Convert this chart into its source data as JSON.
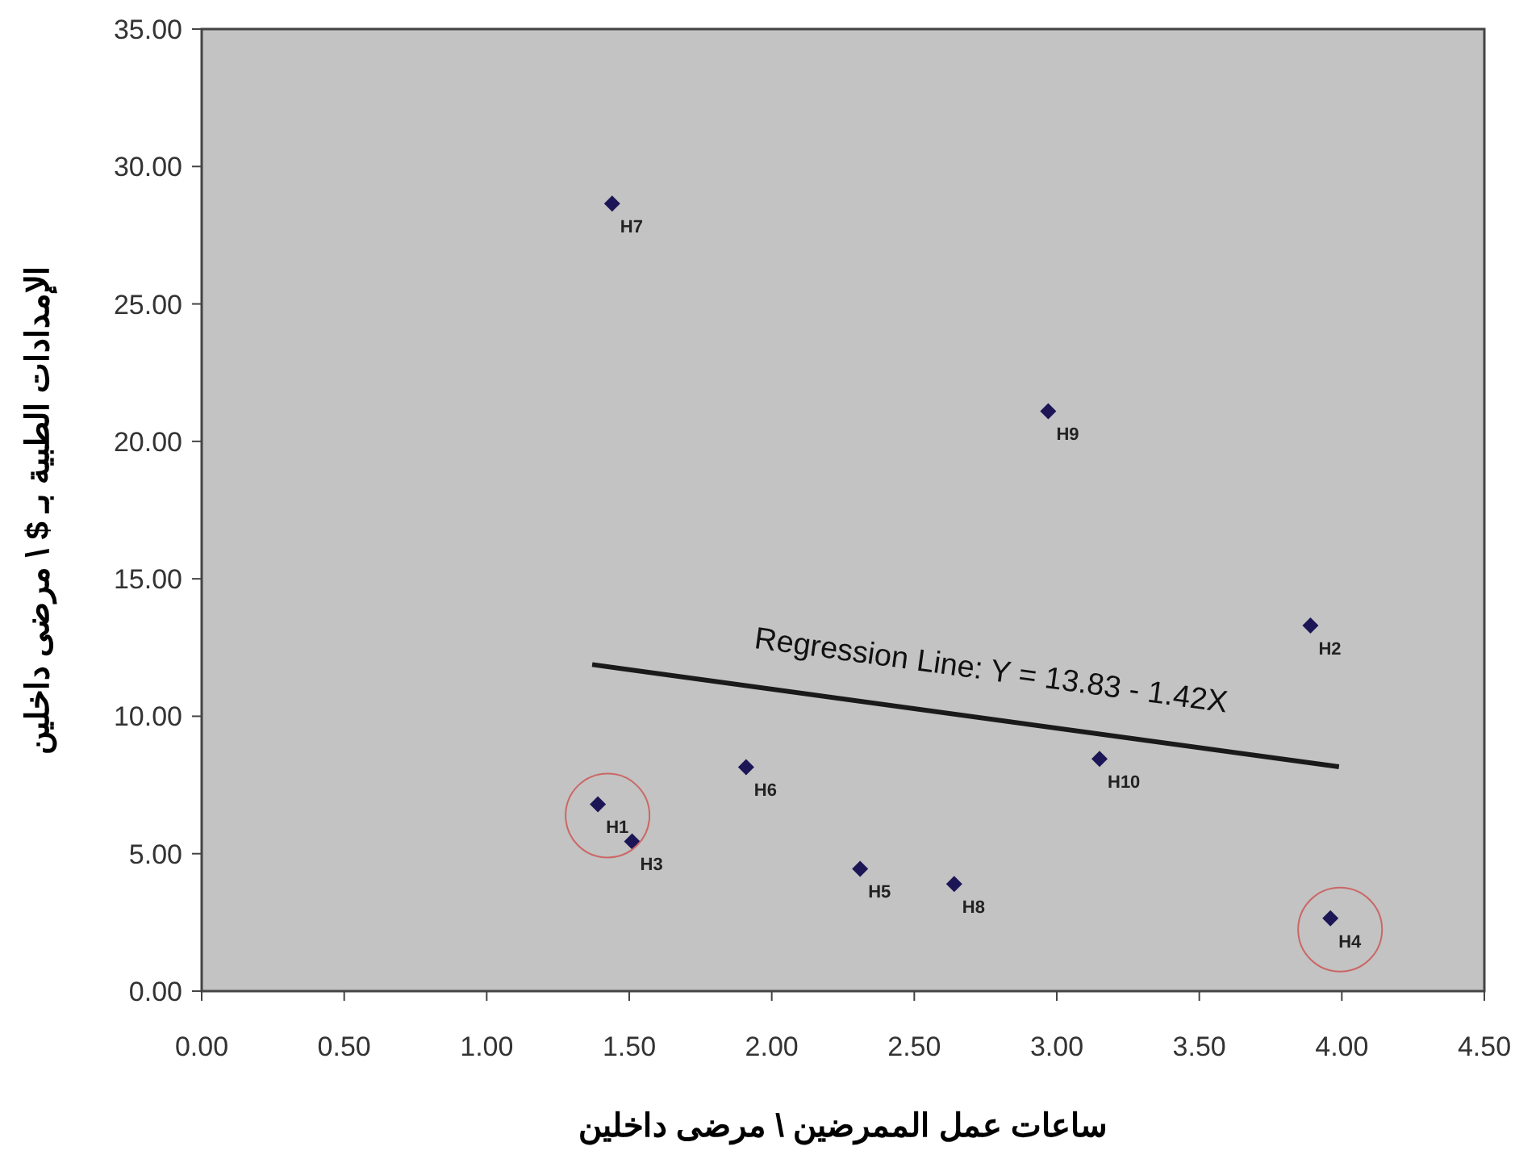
{
  "chart_data": {
    "type": "scatter",
    "xlabel": "ساعات عمل الممرضين \\ مرضى داخلين",
    "ylabel": "الإمدادات الطبية بـ $ \\ مرضى داخلين",
    "x": [
      1.39,
      3.89,
      1.51,
      3.96,
      2.31,
      1.91,
      1.44,
      2.64,
      2.97,
      3.15
    ],
    "series": [
      {
        "color": "#1c1657",
        "marker": "diamond",
        "values": [
          6.8,
          13.3,
          5.45,
          2.65,
          4.45,
          8.15,
          28.65,
          3.9,
          21.1,
          8.45
        ]
      },
      {
        "type": "line",
        "name": "Regression Line: Y = 13.83 - 1.42X",
        "color": "#1a1a1a",
        "x": [
          1.37,
          3.99
        ],
        "values": [
          11.88,
          8.16
        ]
      }
    ],
    "line_style": "solid",
    "grid": false,
    "xlim": [
      0,
      4.5
    ],
    "ylim": [
      0,
      35
    ],
    "xticks": [
      {
        "value": 0,
        "label": "0.00"
      },
      {
        "value": 0.5,
        "label": "0.50"
      },
      {
        "value": 1,
        "label": "1.00"
      },
      {
        "value": 1.5,
        "label": "1.50"
      },
      {
        "value": 2,
        "label": "2.00"
      },
      {
        "value": 2.5,
        "label": "2.50"
      },
      {
        "value": 3,
        "label": "3.00"
      },
      {
        "value": 3.5,
        "label": "3.50"
      },
      {
        "value": 4,
        "label": "4.00"
      },
      {
        "value": 4.5,
        "label": "4.50"
      }
    ],
    "yticks": [
      {
        "value": 0,
        "label": "0.00"
      },
      {
        "value": 5,
        "label": "5.00"
      },
      {
        "value": 10,
        "label": "10.00"
      },
      {
        "value": 15,
        "label": "15.00"
      },
      {
        "value": 20,
        "label": "20.00"
      },
      {
        "value": 25,
        "label": "25.00"
      },
      {
        "value": 30,
        "label": "30.00"
      },
      {
        "value": 35,
        "label": "35.00"
      }
    ],
    "annotations": [
      {
        "text": "H1",
        "x": 1.39,
        "y": 6.8
      },
      {
        "text": "H2",
        "x": 3.89,
        "y": 13.3
      },
      {
        "text": "H3",
        "x": 1.51,
        "y": 5.45
      },
      {
        "text": "H4",
        "x": 3.96,
        "y": 2.65
      },
      {
        "text": "H5",
        "x": 2.31,
        "y": 4.45
      },
      {
        "text": "H6",
        "x": 1.91,
        "y": 8.15
      },
      {
        "text": "H7",
        "x": 1.44,
        "y": 28.65
      },
      {
        "text": "H8",
        "x": 2.64,
        "y": 3.9
      },
      {
        "text": "H9",
        "x": 2.97,
        "y": 21.1
      },
      {
        "text": "H10",
        "x": 3.15,
        "y": 8.45
      }
    ]
  }
}
